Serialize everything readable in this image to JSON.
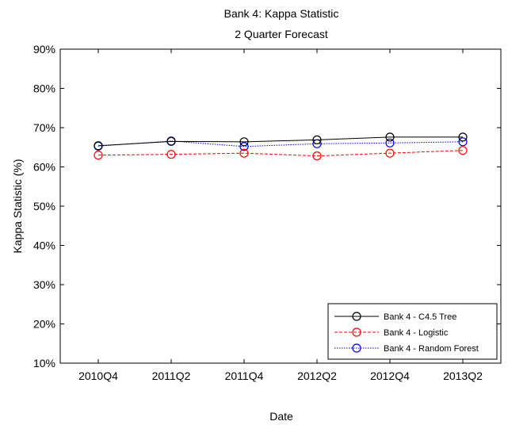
{
  "chart_data": {
    "type": "line",
    "title": "Bank 4: Kappa Statistic",
    "subtitle": "2 Quarter Forecast",
    "xlabel": "Date",
    "ylabel": "Kappa Statistic (%)",
    "categories": [
      "2010Q4",
      "2011Q2",
      "2011Q4",
      "2012Q2",
      "2012Q4",
      "2013Q2"
    ],
    "ylim": [
      10,
      90
    ],
    "yticks": [
      10,
      20,
      30,
      40,
      50,
      60,
      70,
      80,
      90
    ],
    "ytick_labels": [
      "10%",
      "20%",
      "30%",
      "40%",
      "50%",
      "60%",
      "70%",
      "80%",
      "90%"
    ],
    "grid": false,
    "legend_position": "bottom-right",
    "series": [
      {
        "name": "Bank 4 - C4.5 Tree",
        "color": "#000000",
        "dash": "solid",
        "marker": "circle",
        "values": [
          65.4,
          66.5,
          66.4,
          66.9,
          67.6,
          67.6
        ]
      },
      {
        "name": "Bank 4 - Logistic",
        "color": "#ff0000",
        "dash": "dashed",
        "marker": "circle",
        "values": [
          63.0,
          63.2,
          63.5,
          62.8,
          63.5,
          64.2
        ]
      },
      {
        "name": "Bank 4 - Random Forest",
        "color": "#0000ff",
        "dash": "dotted",
        "marker": "circle",
        "values": [
          65.3,
          66.6,
          65.2,
          65.9,
          66.1,
          66.4
        ]
      }
    ]
  }
}
